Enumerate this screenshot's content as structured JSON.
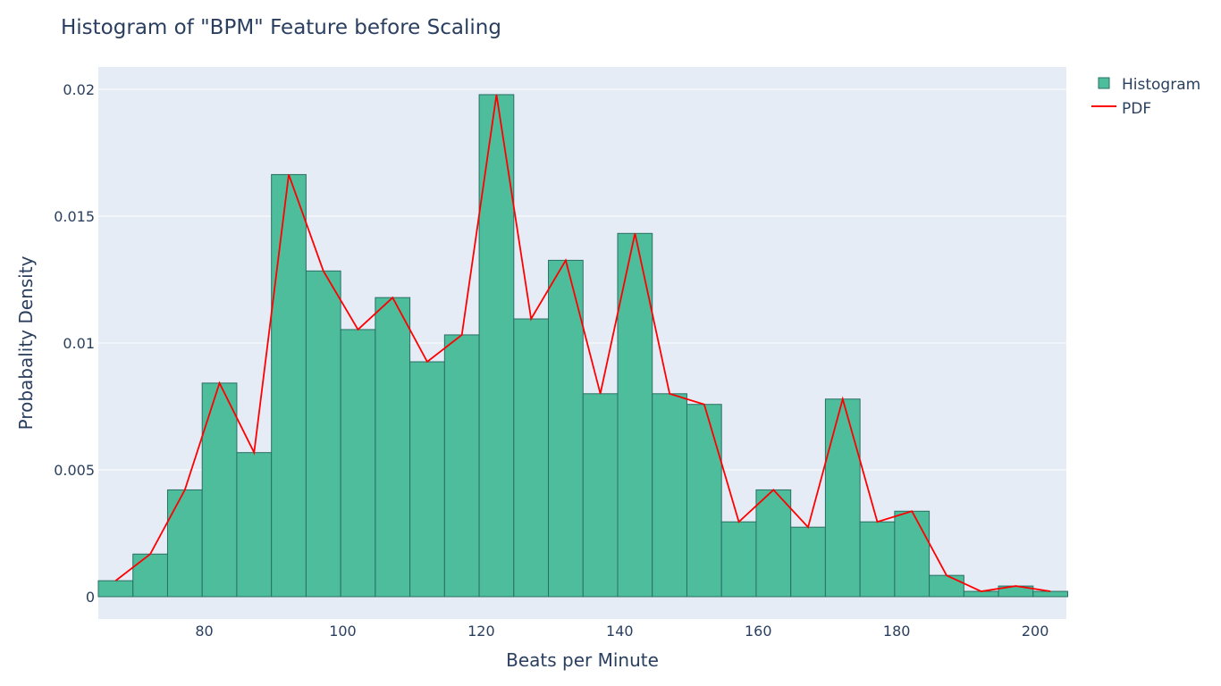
{
  "chart_data": {
    "type": "bar",
    "title": "Histogram of \"BPM\" Feature before Scaling",
    "xlabel": "Beats per Minute",
    "ylabel": "Probabality Density",
    "xlim": [
      64.7,
      204.5
    ],
    "ylim": [
      -0.00088,
      0.02088
    ],
    "xticks": [
      {
        "value": 80,
        "label": "80"
      },
      {
        "value": 100,
        "label": "100"
      },
      {
        "value": 120,
        "label": "120"
      },
      {
        "value": 140,
        "label": "140"
      },
      {
        "value": 160,
        "label": "160"
      },
      {
        "value": 180,
        "label": "180"
      },
      {
        "value": 200,
        "label": "200"
      }
    ],
    "yticks": [
      {
        "value": 0,
        "label": "0"
      },
      {
        "value": 0.005,
        "label": "0.005"
      },
      {
        "value": 0.01,
        "label": "0.01"
      },
      {
        "value": 0.015,
        "label": "0.015"
      },
      {
        "value": 0.02,
        "label": "0.02"
      }
    ],
    "grid": true,
    "legend_position": "top-right",
    "colors": {
      "plot_bg": "#e5ecf6",
      "grid": "#ffffff",
      "bar_fill": "#4ebd9c",
      "bar_edge": "#2a6f64",
      "pdf_line": "#ff0000"
    },
    "series": [
      {
        "name": "Histogram",
        "kind": "histogram",
        "bin_edges": [
          64.7,
          69.7,
          74.7,
          79.7,
          84.7,
          89.7,
          94.7,
          99.7,
          104.7,
          109.7,
          114.7,
          119.7,
          124.7,
          129.7,
          134.7,
          139.7,
          144.7,
          149.7,
          154.7,
          159.7,
          164.7,
          169.7,
          174.7,
          179.7,
          184.7,
          189.7,
          194.7,
          199.7,
          204.7
        ],
        "values": [
          0.00063,
          0.00168,
          0.00421,
          0.00842,
          0.00568,
          0.01664,
          0.01284,
          0.01053,
          0.01179,
          0.00926,
          0.01032,
          0.01979,
          0.01095,
          0.01326,
          0.008,
          0.01432,
          0.008,
          0.00758,
          0.00295,
          0.00421,
          0.00274,
          0.00779,
          0.00295,
          0.00337,
          0.00084,
          0.00021,
          0.00042,
          0.00021
        ]
      },
      {
        "name": "PDF",
        "kind": "line",
        "x": [
          67.2,
          72.2,
          77.2,
          82.2,
          87.2,
          92.2,
          97.2,
          102.2,
          107.2,
          112.2,
          117.2,
          122.2,
          127.2,
          132.2,
          137.2,
          142.2,
          147.2,
          152.2,
          157.2,
          162.2,
          167.2,
          172.2,
          177.2,
          182.2,
          187.2,
          192.2,
          197.2,
          202.2
        ],
        "values": [
          0.00063,
          0.00168,
          0.00421,
          0.00842,
          0.00568,
          0.01664,
          0.01284,
          0.01053,
          0.01179,
          0.00926,
          0.01032,
          0.01979,
          0.01095,
          0.01326,
          0.008,
          0.01432,
          0.008,
          0.00758,
          0.00295,
          0.00421,
          0.00274,
          0.00779,
          0.00295,
          0.00337,
          0.00084,
          0.00021,
          0.00042,
          0.00021
        ]
      }
    ]
  }
}
